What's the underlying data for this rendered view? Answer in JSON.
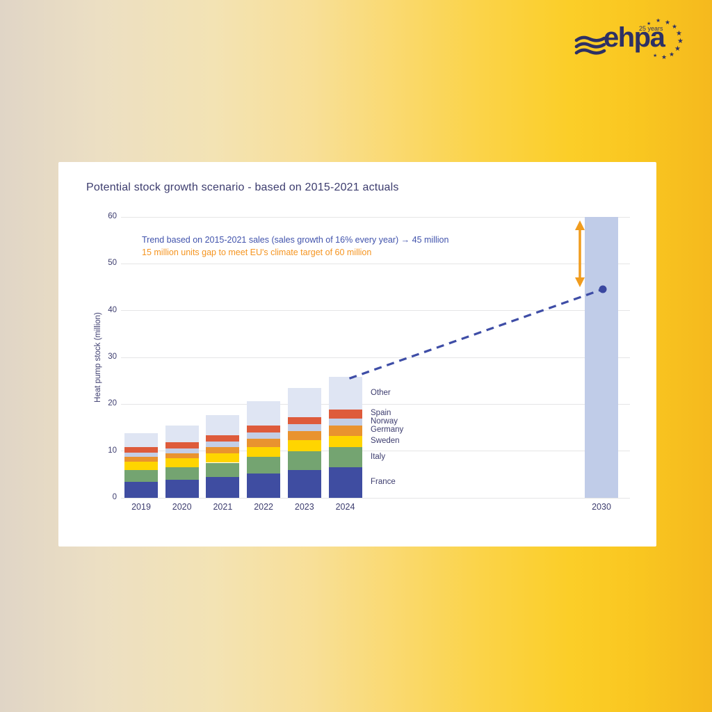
{
  "logo": {
    "brand": "ehpa",
    "anniversary": "25 years"
  },
  "chart_data": {
    "type": "bar",
    "stacked": true,
    "title": "Potential stock growth scenario - based on 2015-2021 actuals",
    "xlabel": "",
    "ylabel": "Heat pump stock (million)",
    "ylim": [
      0,
      60
    ],
    "yticks": [
      0,
      10,
      20,
      30,
      40,
      50,
      60
    ],
    "grid": "horizontal",
    "categories": [
      "2019",
      "2020",
      "2021",
      "2022",
      "2023",
      "2024"
    ],
    "series": [
      {
        "name": "France",
        "color": "#3f4da1",
        "values": [
          3.4,
          3.9,
          4.5,
          5.2,
          6.0,
          6.5
        ]
      },
      {
        "name": "Italy",
        "color": "#74a471",
        "values": [
          2.5,
          2.6,
          3.0,
          3.5,
          4.0,
          4.3
        ]
      },
      {
        "name": "Sweden",
        "color": "#ffd500",
        "values": [
          1.8,
          1.9,
          2.0,
          2.2,
          2.3,
          2.4
        ]
      },
      {
        "name": "Germany",
        "color": "#e9932f",
        "values": [
          1.0,
          1.1,
          1.3,
          1.7,
          2.0,
          2.3
        ]
      },
      {
        "name": "Norway",
        "color": "#c3cee6",
        "values": [
          1.0,
          1.1,
          1.2,
          1.3,
          1.4,
          1.5
        ]
      },
      {
        "name": "Spain",
        "color": "#de5b3b",
        "values": [
          1.2,
          1.3,
          1.3,
          1.5,
          1.6,
          1.8
        ]
      },
      {
        "name": "Other",
        "color": "#dfe5f3",
        "values": [
          2.9,
          3.6,
          4.4,
          5.3,
          6.2,
          7.0
        ]
      }
    ],
    "legend_labels_top_to_bottom": [
      "Other",
      "Spain",
      "Norway",
      "Germany",
      "Sweden",
      "Italy",
      "France"
    ],
    "legend_position": "right-of-last-stacked-bar",
    "projection": {
      "category": "2030",
      "target_bar_value": 60,
      "trend_point_value": 45,
      "bar_color": "#c0cce8",
      "dot_color": "#3a47a0"
    },
    "trend_line": {
      "from_category": "2024",
      "from_value": 25.8,
      "to_category": "2030",
      "to_value": 45,
      "style": "dashed",
      "color": "#3e4da6"
    },
    "gap_arrow": {
      "from_value": 60,
      "to_value": 45,
      "color": "#f09c1e"
    },
    "annotations": [
      {
        "text": "Trend based on 2015-2021 sales (sales growth of 16% every year) → 45 million",
        "color": "#4153ac"
      },
      {
        "text": "15 million units gap to meet EU's climate target of 60 million",
        "color": "#f5941f"
      }
    ]
  }
}
